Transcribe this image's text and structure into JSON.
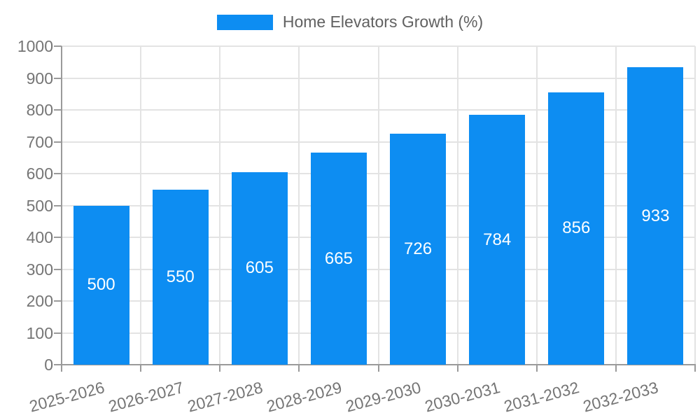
{
  "legend": {
    "label": "Home Elevators Growth (%)"
  },
  "chart_data": {
    "type": "bar",
    "title": "Home Elevators Growth (%)",
    "series_name": "Home Elevators Growth (%)",
    "categories": [
      "2025-2026",
      "2026-2027",
      "2027-2028",
      "2028-2029",
      "2029-2030",
      "2030-2031",
      "2031-2032",
      "2032-2033"
    ],
    "values": [
      500,
      550,
      605,
      665,
      726,
      784,
      856,
      933
    ],
    "xlabel": "",
    "ylabel": "",
    "ylim": [
      0,
      1000
    ],
    "yticks": [
      0,
      100,
      200,
      300,
      400,
      500,
      600,
      700,
      800,
      900,
      1000
    ],
    "grid": true,
    "legend_position": "top",
    "value_labels": "centered-white-inside-bars",
    "x_label_rotation_deg": -15
  },
  "colors": {
    "bar": "#0D8DF2",
    "grid": "#E3E3E3",
    "axis": "#9A9A9A",
    "tick_text": "#757575",
    "legend_text": "#616161",
    "value_text": "#FFFFFF",
    "background": "#FFFFFF"
  }
}
